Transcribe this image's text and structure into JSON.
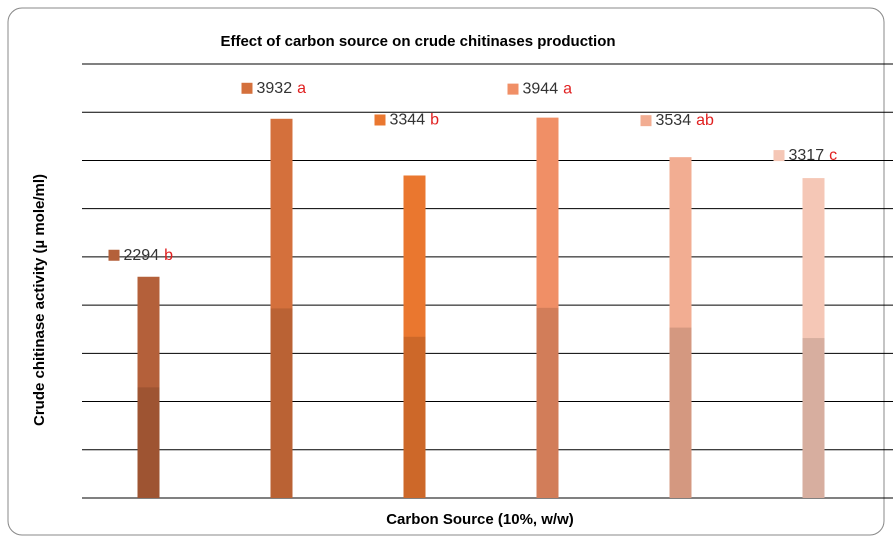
{
  "chart_data": {
    "type": "bar",
    "title": "Effect of carbon source on crude chitinases production",
    "x_label": "Carbon Source (10%, w/w)",
    "y_label": "Crude chitinase activity (µ mole/ml)",
    "categories": [
      null,
      null,
      null,
      null,
      null,
      null
    ],
    "values": [
      2294,
      3932,
      3344,
      3944,
      3534,
      3317
    ],
    "letters": [
      "b",
      "a",
      "b",
      "a",
      "ab",
      "c"
    ],
    "colors": [
      "#b4603a",
      "#d4703c",
      "#ea772f",
      "#f08f66",
      "#f2ad92",
      "#f5c7b6"
    ],
    "letter_color": "#e02020",
    "ylim": [
      0,
      4500
    ],
    "yticks": [
      0,
      500,
      1000,
      1500,
      2000,
      2500,
      3000,
      3500,
      4000,
      4500
    ],
    "grid": true
  }
}
